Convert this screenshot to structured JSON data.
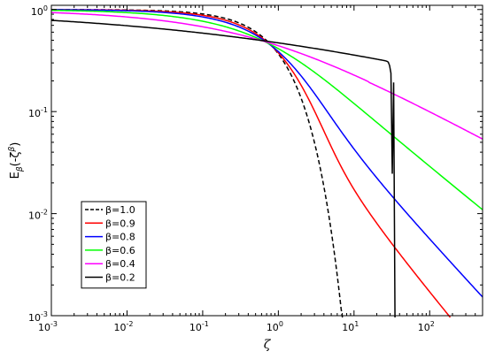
{
  "chart_data": {
    "type": "line",
    "title": "",
    "xlabel": "ζ",
    "ylabel": "E_β(-ζ^β)",
    "x_scale": "log",
    "y_scale": "log",
    "xlim": [
      0.001,
      500
    ],
    "ylim": [
      0.001,
      1.1
    ],
    "x_ticks": [
      {
        "value": 0.001,
        "mant": "10",
        "exp": "-3"
      },
      {
        "value": 0.01,
        "mant": "10",
        "exp": "-2"
      },
      {
        "value": 0.1,
        "mant": "10",
        "exp": "-1"
      },
      {
        "value": 1,
        "mant": "10",
        "exp": "0"
      },
      {
        "value": 10,
        "mant": "10",
        "exp": "1"
      },
      {
        "value": 100,
        "mant": "10",
        "exp": "2"
      }
    ],
    "y_ticks": [
      {
        "value": 0.001,
        "mant": "10",
        "exp": "-3"
      },
      {
        "value": 0.01,
        "mant": "10",
        "exp": "-2"
      },
      {
        "value": 0.1,
        "mant": "10",
        "exp": "-1"
      },
      {
        "value": 1,
        "mant": "10",
        "exp": "0"
      }
    ],
    "grid": false,
    "legend_position": "lower-left",
    "series": [
      {
        "name": "β=1.0",
        "beta": 1.0,
        "color": "#000000",
        "dash": "dashed"
      },
      {
        "name": "β=0.9",
        "beta": 0.9,
        "color": "#ff0000",
        "dash": "solid"
      },
      {
        "name": "β=0.8",
        "beta": 0.8,
        "color": "#0000ff",
        "dash": "solid"
      },
      {
        "name": "β=0.6",
        "beta": 0.6,
        "color": "#00ff00",
        "dash": "solid"
      },
      {
        "name": "β=0.4",
        "beta": 0.4,
        "color": "#ff00ff",
        "dash": "solid"
      },
      {
        "name": "β=0.2",
        "beta": 0.2,
        "color": "#000000",
        "dash": "solid"
      }
    ]
  }
}
